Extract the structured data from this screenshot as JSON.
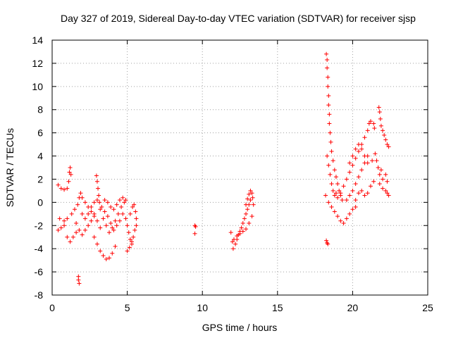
{
  "chart_data": {
    "type": "scatter",
    "title": "Day 327 of 2019, Sidereal Day-to-day VTEC variation (SDTVAR) for receiver sjsp",
    "xlabel": "GPS time / hours",
    "ylabel": "SDTVAR / TECUs",
    "xlim": [
      0,
      25
    ],
    "ylim": [
      -8,
      14
    ],
    "xticks": [
      0,
      5,
      10,
      15,
      20,
      25
    ],
    "yticks": [
      -8,
      -6,
      -4,
      -2,
      0,
      2,
      4,
      6,
      8,
      10,
      12,
      14
    ],
    "grid": true,
    "marker": "+",
    "color": "#ff0000",
    "series": [
      {
        "name": "SDTVAR",
        "points": [
          [
            0.4,
            1.5
          ],
          [
            0.6,
            1.2
          ],
          [
            0.8,
            1.1
          ],
          [
            1.0,
            1.2
          ],
          [
            1.1,
            1.8
          ],
          [
            1.15,
            2.6
          ],
          [
            1.2,
            3.0
          ],
          [
            1.25,
            2.4
          ],
          [
            0.4,
            -2.4
          ],
          [
            0.6,
            -2.2
          ],
          [
            0.8,
            -2.0
          ],
          [
            1.0,
            -3.0
          ],
          [
            1.2,
            -3.4
          ],
          [
            1.4,
            -3.0
          ],
          [
            1.6,
            -2.6
          ],
          [
            0.5,
            -1.4
          ],
          [
            0.8,
            -1.6
          ],
          [
            1.0,
            -1.4
          ],
          [
            1.3,
            -1.0
          ],
          [
            1.5,
            -0.6
          ],
          [
            1.7,
            -0.2
          ],
          [
            1.8,
            0.4
          ],
          [
            1.9,
            0.8
          ],
          [
            2.0,
            0.4
          ],
          [
            2.2,
            0.0
          ],
          [
            2.4,
            -0.4
          ],
          [
            2.6,
            -0.8
          ],
          [
            2.8,
            -1.2
          ],
          [
            3.0,
            -1.6
          ],
          [
            3.2,
            -2.2
          ],
          [
            1.6,
            -1.8
          ],
          [
            1.8,
            -2.4
          ],
          [
            2.0,
            -2.8
          ],
          [
            2.2,
            -2.4
          ],
          [
            2.4,
            -2.0
          ],
          [
            2.6,
            -1.6
          ],
          [
            2.8,
            -1.0
          ],
          [
            2.0,
            -1.0
          ],
          [
            2.2,
            -1.4
          ],
          [
            2.4,
            -1.0
          ],
          [
            2.6,
            -0.4
          ],
          [
            2.8,
            0.0
          ],
          [
            3.0,
            0.2
          ],
          [
            1.75,
            -6.4
          ],
          [
            1.75,
            -6.7
          ],
          [
            1.8,
            -7.0
          ],
          [
            2.8,
            -3.0
          ],
          [
            3.0,
            -3.6
          ],
          [
            3.2,
            -4.2
          ],
          [
            3.4,
            -4.6
          ],
          [
            3.6,
            -4.9
          ],
          [
            3.8,
            -4.8
          ],
          [
            4.0,
            -4.4
          ],
          [
            4.2,
            -3.8
          ],
          [
            2.95,
            2.3
          ],
          [
            3.0,
            1.8
          ],
          [
            3.05,
            1.2
          ],
          [
            3.1,
            0.6
          ],
          [
            3.15,
            0.0
          ],
          [
            3.2,
            -0.6
          ],
          [
            3.3,
            -0.4
          ],
          [
            3.5,
            -0.8
          ],
          [
            3.7,
            -1.2
          ],
          [
            3.9,
            -1.8
          ],
          [
            4.1,
            -2.4
          ],
          [
            4.3,
            -2.0
          ],
          [
            4.5,
            -1.6
          ],
          [
            4.7,
            -1.0
          ],
          [
            3.4,
            -1.4
          ],
          [
            3.6,
            -2.0
          ],
          [
            3.8,
            -2.6
          ],
          [
            4.0,
            -2.2
          ],
          [
            4.2,
            -1.6
          ],
          [
            4.4,
            -1.0
          ],
          [
            4.6,
            -0.4
          ],
          [
            4.8,
            0.0
          ],
          [
            3.5,
            0.2
          ],
          [
            3.7,
            0.0
          ],
          [
            3.9,
            -0.4
          ],
          [
            4.1,
            -0.6
          ],
          [
            4.3,
            -0.2
          ],
          [
            4.5,
            0.2
          ],
          [
            4.7,
            0.4
          ],
          [
            4.9,
            0.2
          ],
          [
            4.9,
            -1.4
          ],
          [
            5.0,
            -2.0
          ],
          [
            5.1,
            -2.6
          ],
          [
            5.2,
            -3.2
          ],
          [
            5.3,
            -3.6
          ],
          [
            5.4,
            -3.0
          ],
          [
            5.5,
            -2.4
          ],
          [
            5.6,
            -2.0
          ],
          [
            5.2,
            -1.0
          ],
          [
            5.35,
            -0.4
          ],
          [
            5.45,
            -0.2
          ],
          [
            5.55,
            -0.8
          ],
          [
            5.6,
            -1.4
          ],
          [
            5.0,
            -4.2
          ],
          [
            5.15,
            -3.9
          ],
          [
            5.3,
            -3.4
          ],
          [
            9.5,
            -2.0
          ],
          [
            9.55,
            -2.1
          ],
          [
            9.5,
            -2.7
          ],
          [
            11.9,
            -2.6
          ],
          [
            12.0,
            -3.4
          ],
          [
            12.05,
            -4.0
          ],
          [
            12.2,
            -3.6
          ],
          [
            12.3,
            -3.2
          ],
          [
            12.4,
            -2.8
          ],
          [
            12.5,
            -2.5
          ],
          [
            12.6,
            -2.2
          ],
          [
            12.7,
            -1.8
          ],
          [
            12.8,
            -1.4
          ],
          [
            12.9,
            -1.0
          ],
          [
            13.0,
            -0.6
          ],
          [
            13.1,
            -0.2
          ],
          [
            13.2,
            0.2
          ],
          [
            12.9,
            -0.2
          ],
          [
            13.0,
            0.3
          ],
          [
            13.1,
            0.7
          ],
          [
            13.2,
            1.0
          ],
          [
            13.3,
            0.8
          ],
          [
            13.35,
            0.4
          ],
          [
            13.4,
            -0.2
          ],
          [
            12.1,
            -3.2
          ],
          [
            12.3,
            -2.9
          ],
          [
            12.5,
            -2.7
          ],
          [
            12.7,
            -2.5
          ],
          [
            12.9,
            -2.3
          ],
          [
            13.1,
            -1.8
          ],
          [
            13.3,
            -1.2
          ],
          [
            18.25,
            12.8
          ],
          [
            18.3,
            12.3
          ],
          [
            18.3,
            11.6
          ],
          [
            18.35,
            10.8
          ],
          [
            18.35,
            10.0
          ],
          [
            18.4,
            9.2
          ],
          [
            18.4,
            8.4
          ],
          [
            18.45,
            7.6
          ],
          [
            18.45,
            6.8
          ],
          [
            18.5,
            6.0
          ],
          [
            18.55,
            5.2
          ],
          [
            18.6,
            4.4
          ],
          [
            18.7,
            3.6
          ],
          [
            18.8,
            2.8
          ],
          [
            18.9,
            2.2
          ],
          [
            19.0,
            1.6
          ],
          [
            19.1,
            1.0
          ],
          [
            19.2,
            0.6
          ],
          [
            19.3,
            0.2
          ],
          [
            18.3,
            4.0
          ],
          [
            18.4,
            3.2
          ],
          [
            18.5,
            2.4
          ],
          [
            18.6,
            1.6
          ],
          [
            18.7,
            1.0
          ],
          [
            18.8,
            0.6
          ],
          [
            18.9,
            0.8
          ],
          [
            18.2,
            0.6
          ],
          [
            18.4,
            0.0
          ],
          [
            18.6,
            -0.4
          ],
          [
            18.8,
            -0.8
          ],
          [
            19.0,
            -1.2
          ],
          [
            19.2,
            -1.6
          ],
          [
            19.4,
            -1.8
          ],
          [
            19.6,
            -1.4
          ],
          [
            19.8,
            -1.0
          ],
          [
            20.0,
            -0.6
          ],
          [
            20.2,
            -0.4
          ],
          [
            18.25,
            -3.3
          ],
          [
            18.35,
            -3.6
          ],
          [
            18.3,
            -3.5
          ],
          [
            19.0,
            0.4
          ],
          [
            19.2,
            0.8
          ],
          [
            19.4,
            1.4
          ],
          [
            19.6,
            2.0
          ],
          [
            19.8,
            2.6
          ],
          [
            20.0,
            3.2
          ],
          [
            20.2,
            3.8
          ],
          [
            20.4,
            4.4
          ],
          [
            20.6,
            5.0
          ],
          [
            20.8,
            5.6
          ],
          [
            21.0,
            6.2
          ],
          [
            21.1,
            6.8
          ],
          [
            21.2,
            7.0
          ],
          [
            19.6,
            0.2
          ],
          [
            19.8,
            0.6
          ],
          [
            20.0,
            1.0
          ],
          [
            20.2,
            1.6
          ],
          [
            20.4,
            2.2
          ],
          [
            20.6,
            2.8
          ],
          [
            20.8,
            3.4
          ],
          [
            21.0,
            4.0
          ],
          [
            19.8,
            3.4
          ],
          [
            20.0,
            4.0
          ],
          [
            20.2,
            4.6
          ],
          [
            20.4,
            5.0
          ],
          [
            20.6,
            4.6
          ],
          [
            20.8,
            4.0
          ],
          [
            21.0,
            3.4
          ],
          [
            20.2,
            0.2
          ],
          [
            20.4,
            0.8
          ],
          [
            20.6,
            1.0
          ],
          [
            20.8,
            0.6
          ],
          [
            21.0,
            0.8
          ],
          [
            21.2,
            1.4
          ],
          [
            21.4,
            1.8
          ],
          [
            21.3,
            3.6
          ],
          [
            21.5,
            4.2
          ],
          [
            21.6,
            3.6
          ],
          [
            21.7,
            3.0
          ],
          [
            21.8,
            2.4
          ],
          [
            21.9,
            2.8
          ],
          [
            22.0,
            2.0
          ],
          [
            21.75,
            8.2
          ],
          [
            21.8,
            7.8
          ],
          [
            21.85,
            7.2
          ],
          [
            21.9,
            6.6
          ],
          [
            22.0,
            6.2
          ],
          [
            22.1,
            5.8
          ],
          [
            22.2,
            5.4
          ],
          [
            22.3,
            5.0
          ],
          [
            22.4,
            4.8
          ],
          [
            21.4,
            6.8
          ],
          [
            21.45,
            6.4
          ],
          [
            21.8,
            1.6
          ],
          [
            22.0,
            1.2
          ],
          [
            22.2,
            1.0
          ],
          [
            22.3,
            0.8
          ],
          [
            22.4,
            0.6
          ],
          [
            22.3,
            1.8
          ],
          [
            22.2,
            2.4
          ]
        ]
      }
    ]
  }
}
